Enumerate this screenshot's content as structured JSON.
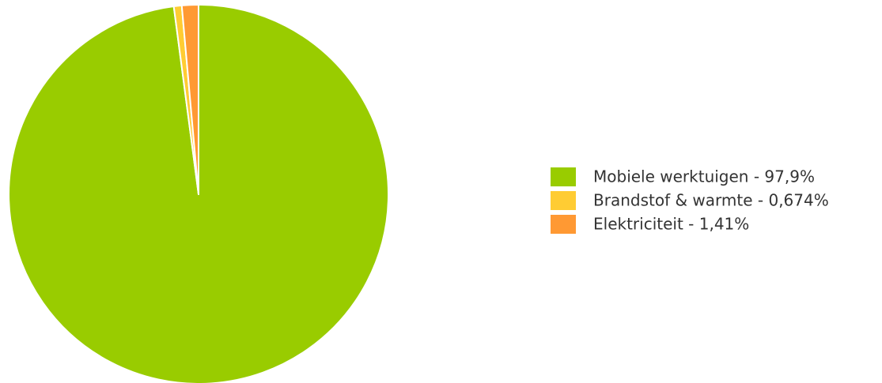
{
  "chart_data": {
    "type": "pie",
    "title": "",
    "legend_position": "right",
    "slices": [
      {
        "label": "Mobiele werktuigen - 97,9%",
        "name": "Mobiele werktuigen",
        "value": 97.9,
        "color": "#99cc00"
      },
      {
        "label": "Brandstof & warmte - 0,674%",
        "name": "Brandstof & warmte",
        "value": 0.674,
        "color": "#ffcc33"
      },
      {
        "label": "Elektriciteit - 1,41%",
        "name": "Elektriciteit",
        "value": 1.41,
        "color": "#ff9933"
      }
    ],
    "start": "12 o'clock",
    "direction": "clockwise"
  }
}
